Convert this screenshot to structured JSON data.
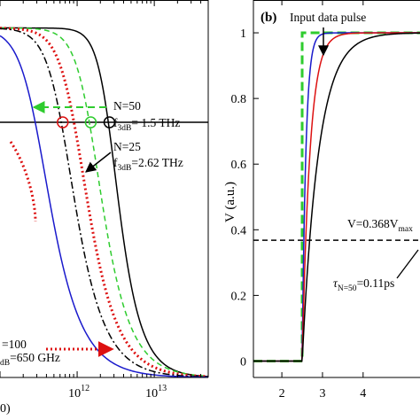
{
  "chart_data": [
    {
      "panel": "a",
      "type": "line",
      "xscale": "log",
      "xlim": [
        100000000000.0,
        50000000000000.0
      ],
      "ylim": [
        0,
        1.08
      ],
      "xticks": [
        {
          "value": 1000000000000.0,
          "base": "10",
          "exp": "12"
        },
        {
          "value": 10000000000000.0,
          "base": "10",
          "exp": "13"
        }
      ],
      "threshold_y": 0.73,
      "series": [
        {
          "color": "#000000",
          "dash": "",
          "f3dB": 2620000000000.0,
          "n": 2.0
        },
        {
          "color": "#2ecc2e",
          "dash": "6,4",
          "f3dB": 1500000000000.0,
          "n": 1.6
        },
        {
          "color": "#dd1111",
          "dash": "2,3",
          "f3dB": 950000000000.0,
          "n": 1.5
        },
        {
          "color": "#000000",
          "dash": "8,3,2,3",
          "f3dB": 650000000000.0,
          "n": 1.5
        },
        {
          "color": "#1a1acc",
          "dash": "",
          "f3dB": 300000000000.0,
          "n": 1.4
        }
      ],
      "markers": [
        {
          "x": 2620000000000.0,
          "y": 0.73,
          "color": "#000000"
        },
        {
          "x": 1500000000000.0,
          "y": 0.73,
          "color": "#2ecc2e"
        },
        {
          "x": 650000000000.0,
          "y": 0.73,
          "color": "#dd1111"
        }
      ],
      "annotations": {
        "n50": "N=50",
        "f50_prefix": "f",
        "f50_sub": "3dB",
        "f50_value": "= 1.5 THz",
        "n25": "N=25",
        "f25_prefix": "f",
        "f25_sub": "3dB",
        "f25_value": "=2.62 THz",
        "n100": "=100",
        "f100_sub": "dB",
        "f100_value": "=650 GHz",
        "bottom_label": "0)"
      }
    },
    {
      "panel": "b",
      "label": "(b)",
      "type": "line",
      "xlim": [
        1.3,
        5.4
      ],
      "ylim": [
        -0.05,
        1.1
      ],
      "xticks": [
        2,
        3,
        4
      ],
      "yticks": [
        0,
        0.2,
        0.4,
        0.6,
        0.8,
        1
      ],
      "ytick_labels": [
        "0",
        "0.2",
        "0.4",
        "0.6",
        "0.8",
        "1"
      ],
      "ylabel": "V (a.u.)",
      "threshold_y": 0.368,
      "pulse_t0": 2.5,
      "series": [
        {
          "name": "Input data pulse",
          "color": "#2ecc2e",
          "dash": "10,5",
          "tau": 0
        },
        {
          "color": "#1a1acc",
          "dash": "",
          "tau": 0.09
        },
        {
          "color": "#dd1111",
          "dash": "",
          "tau": 0.19
        },
        {
          "color": "#000000",
          "dash": "",
          "tau": 0.4
        }
      ],
      "annotations": {
        "input": "Input data pulse",
        "v_label": "V=0.368V",
        "v_sub": "max",
        "tau_symbol": "τ",
        "tau_sub": "N=50",
        "tau_value": "=0.11ps"
      }
    }
  ]
}
